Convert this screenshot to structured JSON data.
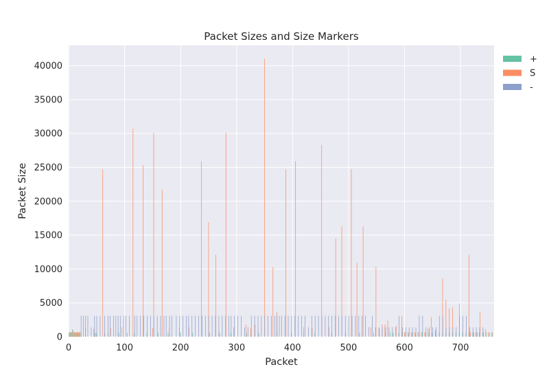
{
  "chart_data": {
    "type": "bar",
    "title": "Packet Sizes and Size Markers",
    "xlabel": "Packet",
    "ylabel": "Packet Size",
    "xlim": [
      0,
      760
    ],
    "ylim": [
      0,
      43000
    ],
    "xticks": [
      0,
      100,
      200,
      300,
      400,
      500,
      600,
      700
    ],
    "yticks": [
      0,
      5000,
      10000,
      15000,
      20000,
      25000,
      30000,
      35000,
      40000
    ],
    "grid": true,
    "legend_position": "outside-top-right",
    "colors": {
      "plus": "#66c2a5",
      "S": "#fc8d62",
      "minus": "#8da0cb",
      "background": "#eaeaf2",
      "grid": "#ffffff"
    },
    "series": [
      {
        "name": "+",
        "points": [
          [
            1,
            600
          ],
          [
            3,
            600
          ],
          [
            5,
            600
          ],
          [
            7,
            1100
          ],
          [
            9,
            600
          ],
          [
            11,
            600
          ],
          [
            13,
            600
          ],
          [
            15,
            600
          ],
          [
            17,
            600
          ],
          [
            19,
            600
          ],
          [
            21,
            600
          ],
          [
            48,
            600
          ],
          [
            50,
            600
          ],
          [
            65,
            600
          ],
          [
            71,
            600
          ],
          [
            90,
            600
          ],
          [
            105,
            600
          ],
          [
            118,
            600
          ],
          [
            140,
            600
          ],
          [
            160,
            600
          ],
          [
            178,
            600
          ],
          [
            200,
            600
          ],
          [
            222,
            600
          ],
          [
            252,
            600
          ],
          [
            270,
            600
          ],
          [
            290,
            600
          ],
          [
            318,
            600
          ],
          [
            340,
            600
          ],
          [
            372,
            600
          ],
          [
            398,
            600
          ],
          [
            420,
            600
          ],
          [
            440,
            600
          ],
          [
            470,
            600
          ],
          [
            495,
            600
          ],
          [
            520,
            600
          ],
          [
            545,
            600
          ],
          [
            566,
            600
          ],
          [
            575,
            600
          ],
          [
            580,
            600
          ],
          [
            585,
            600
          ],
          [
            590,
            600
          ],
          [
            596,
            600
          ],
          [
            602,
            600
          ],
          [
            608,
            600
          ],
          [
            614,
            600
          ],
          [
            620,
            600
          ],
          [
            626,
            600
          ],
          [
            632,
            600
          ],
          [
            638,
            600
          ],
          [
            644,
            600
          ],
          [
            650,
            600
          ],
          [
            656,
            600
          ],
          [
            662,
            600
          ],
          [
            668,
            600
          ],
          [
            674,
            600
          ],
          [
            680,
            600
          ],
          [
            686,
            600
          ],
          [
            692,
            600
          ],
          [
            698,
            600
          ],
          [
            704,
            600
          ],
          [
            710,
            600
          ],
          [
            716,
            600
          ],
          [
            722,
            600
          ],
          [
            728,
            600
          ],
          [
            734,
            600
          ],
          [
            740,
            600
          ],
          [
            746,
            600
          ],
          [
            752,
            600
          ],
          [
            757,
            600
          ]
        ]
      },
      {
        "name": "S",
        "points": [
          [
            2,
            700
          ],
          [
            4,
            700
          ],
          [
            6,
            700
          ],
          [
            8,
            900
          ],
          [
            10,
            700
          ],
          [
            12,
            700
          ],
          [
            14,
            700
          ],
          [
            16,
            700
          ],
          [
            18,
            700
          ],
          [
            20,
            700
          ],
          [
            30,
            1400
          ],
          [
            45,
            1200
          ],
          [
            61,
            24700
          ],
          [
            75,
            1300
          ],
          [
            95,
            1400
          ],
          [
            115,
            30700
          ],
          [
            133,
            25300
          ],
          [
            150,
            1300
          ],
          [
            152,
            30100
          ],
          [
            167,
            21700
          ],
          [
            180,
            1400
          ],
          [
            198,
            1300
          ],
          [
            215,
            1400
          ],
          [
            237,
            25900
          ],
          [
            250,
            16900
          ],
          [
            263,
            12100
          ],
          [
            281,
            30100
          ],
          [
            295,
            1400
          ],
          [
            317,
            1800
          ],
          [
            325,
            1200
          ],
          [
            333,
            1800
          ],
          [
            350,
            41000
          ],
          [
            365,
            10300
          ],
          [
            372,
            3700
          ],
          [
            388,
            24700
          ],
          [
            405,
            25900
          ],
          [
            420,
            1400
          ],
          [
            435,
            1300
          ],
          [
            452,
            28300
          ],
          [
            465,
            1400
          ],
          [
            477,
            14500
          ],
          [
            488,
            16300
          ],
          [
            505,
            24700
          ],
          [
            515,
            10900
          ],
          [
            526,
            16300
          ],
          [
            540,
            1400
          ],
          [
            549,
            10300
          ],
          [
            555,
            1200
          ],
          [
            560,
            1800
          ],
          [
            565,
            1800
          ],
          [
            570,
            2400
          ],
          [
            585,
            1600
          ],
          [
            595,
            3100
          ],
          [
            600,
            700
          ],
          [
            606,
            700
          ],
          [
            612,
            700
          ],
          [
            618,
            700
          ],
          [
            624,
            700
          ],
          [
            630,
            700
          ],
          [
            636,
            700
          ],
          [
            642,
            1200
          ],
          [
            648,
            2900
          ],
          [
            655,
            1000
          ],
          [
            668,
            8600
          ],
          [
            674,
            5500
          ],
          [
            680,
            4200
          ],
          [
            686,
            4300
          ],
          [
            698,
            4900
          ],
          [
            715,
            12100
          ],
          [
            718,
            700
          ],
          [
            724,
            700
          ],
          [
            730,
            700
          ],
          [
            735,
            3700
          ],
          [
            741,
            700
          ],
          [
            745,
            1100
          ],
          [
            750,
            700
          ],
          [
            756,
            700
          ]
        ]
      },
      {
        "name": "-",
        "points": [
          [
            22,
            3100
          ],
          [
            26,
            3100
          ],
          [
            30,
            3100
          ],
          [
            34,
            3100
          ],
          [
            40,
            1400
          ],
          [
            46,
            3100
          ],
          [
            50,
            3100
          ],
          [
            56,
            3100
          ],
          [
            64,
            3100
          ],
          [
            70,
            3100
          ],
          [
            74,
            3100
          ],
          [
            80,
            3100
          ],
          [
            84,
            3100
          ],
          [
            88,
            3100
          ],
          [
            92,
            3100
          ],
          [
            98,
            3100
          ],
          [
            102,
            3100
          ],
          [
            108,
            3100
          ],
          [
            118,
            3100
          ],
          [
            122,
            3100
          ],
          [
            128,
            3100
          ],
          [
            134,
            3100
          ],
          [
            140,
            3100
          ],
          [
            146,
            3100
          ],
          [
            152,
            3100
          ],
          [
            158,
            3100
          ],
          [
            164,
            3100
          ],
          [
            170,
            3100
          ],
          [
            174,
            3100
          ],
          [
            180,
            3100
          ],
          [
            184,
            3100
          ],
          [
            192,
            3100
          ],
          [
            198,
            3100
          ],
          [
            204,
            3100
          ],
          [
            210,
            3100
          ],
          [
            214,
            3100
          ],
          [
            220,
            3100
          ],
          [
            226,
            3100
          ],
          [
            232,
            3100
          ],
          [
            238,
            3100
          ],
          [
            244,
            3100
          ],
          [
            250,
            3100
          ],
          [
            256,
            3100
          ],
          [
            262,
            3100
          ],
          [
            268,
            3100
          ],
          [
            274,
            3100
          ],
          [
            280,
            3100
          ],
          [
            286,
            3100
          ],
          [
            290,
            3100
          ],
          [
            296,
            3100
          ],
          [
            302,
            3100
          ],
          [
            308,
            3100
          ],
          [
            314,
            1400
          ],
          [
            320,
            1400
          ],
          [
            326,
            3100
          ],
          [
            332,
            3100
          ],
          [
            338,
            3100
          ],
          [
            344,
            3100
          ],
          [
            350,
            3100
          ],
          [
            356,
            3100
          ],
          [
            362,
            3100
          ],
          [
            368,
            3100
          ],
          [
            372,
            3100
          ],
          [
            376,
            3100
          ],
          [
            380,
            3100
          ],
          [
            386,
            3100
          ],
          [
            392,
            3100
          ],
          [
            398,
            3100
          ],
          [
            404,
            3100
          ],
          [
            410,
            3100
          ],
          [
            416,
            3100
          ],
          [
            422,
            3100
          ],
          [
            428,
            1400
          ],
          [
            434,
            3100
          ],
          [
            440,
            3100
          ],
          [
            446,
            3100
          ],
          [
            452,
            3100
          ],
          [
            458,
            3100
          ],
          [
            464,
            3100
          ],
          [
            470,
            3100
          ],
          [
            476,
            3100
          ],
          [
            482,
            3100
          ],
          [
            488,
            3100
          ],
          [
            494,
            3100
          ],
          [
            500,
            3100
          ],
          [
            506,
            3100
          ],
          [
            512,
            3100
          ],
          [
            518,
            3100
          ],
          [
            524,
            3100
          ],
          [
            530,
            3100
          ],
          [
            536,
            1400
          ],
          [
            542,
            3100
          ],
          [
            548,
            1400
          ],
          [
            554,
            1400
          ],
          [
            560,
            1400
          ],
          [
            566,
            1400
          ],
          [
            572,
            1400
          ],
          [
            578,
            1400
          ],
          [
            584,
            1400
          ],
          [
            590,
            3100
          ],
          [
            596,
            1400
          ],
          [
            602,
            1400
          ],
          [
            608,
            1400
          ],
          [
            614,
            1400
          ],
          [
            620,
            1400
          ],
          [
            626,
            3100
          ],
          [
            632,
            3100
          ],
          [
            638,
            1400
          ],
          [
            644,
            1400
          ],
          [
            650,
            1400
          ],
          [
            656,
            1400
          ],
          [
            662,
            3100
          ],
          [
            668,
            3100
          ],
          [
            674,
            1400
          ],
          [
            680,
            1400
          ],
          [
            686,
            1400
          ],
          [
            692,
            1400
          ],
          [
            698,
            3100
          ],
          [
            704,
            3100
          ],
          [
            710,
            3100
          ],
          [
            716,
            1400
          ],
          [
            722,
            1400
          ],
          [
            728,
            1400
          ],
          [
            734,
            1400
          ],
          [
            740,
            1400
          ]
        ]
      }
    ]
  }
}
